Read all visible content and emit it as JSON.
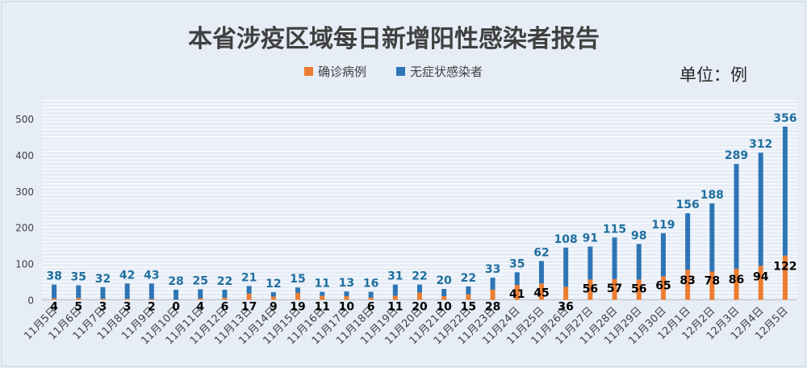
{
  "chart_data": {
    "type": "bar",
    "stacked": true,
    "title": "本省涉疫区域每日新增阳性感染者报告",
    "unit_label": "单位：例",
    "categories": [
      "11月5日",
      "11月6日",
      "11月7日",
      "11月8日",
      "11月9日",
      "11月10日",
      "11月11日",
      "11月12日",
      "11月13日",
      "11月14日",
      "11月15日",
      "11月16日",
      "11月17日",
      "11月18日",
      "11月19日",
      "11月20日",
      "11月21日",
      "11月22日",
      "11月23日",
      "11月24日",
      "11月25日",
      "11月26日",
      "11月27日",
      "11月28日",
      "11月29日",
      "11月30日",
      "12月1日",
      "12月2日",
      "12月3日",
      "12月4日",
      "12月5日"
    ],
    "series": [
      {
        "name": "确诊病例",
        "color": "#ed7d31",
        "label_color": "#000000",
        "values": [
          4,
          5,
          3,
          3,
          2,
          0,
          4,
          6,
          17,
          9,
          19,
          11,
          10,
          6,
          11,
          20,
          10,
          15,
          28,
          41,
          45,
          36,
          56,
          57,
          56,
          65,
          83,
          78,
          86,
          94,
          122
        ]
      },
      {
        "name": "无症状感染者",
        "color": "#2e75b6",
        "label_color": "#1f6f9f",
        "values": [
          38,
          35,
          32,
          42,
          43,
          28,
          25,
          22,
          21,
          12,
          15,
          11,
          13,
          16,
          31,
          22,
          20,
          22,
          33,
          35,
          62,
          108,
          91,
          115,
          98,
          119,
          156,
          188,
          289,
          312,
          356
        ]
      }
    ],
    "y_ticks": [
      0,
      100,
      200,
      300,
      400,
      500
    ],
    "ylim": [
      0,
      500
    ],
    "grid": true,
    "legend_position": "top-center"
  }
}
